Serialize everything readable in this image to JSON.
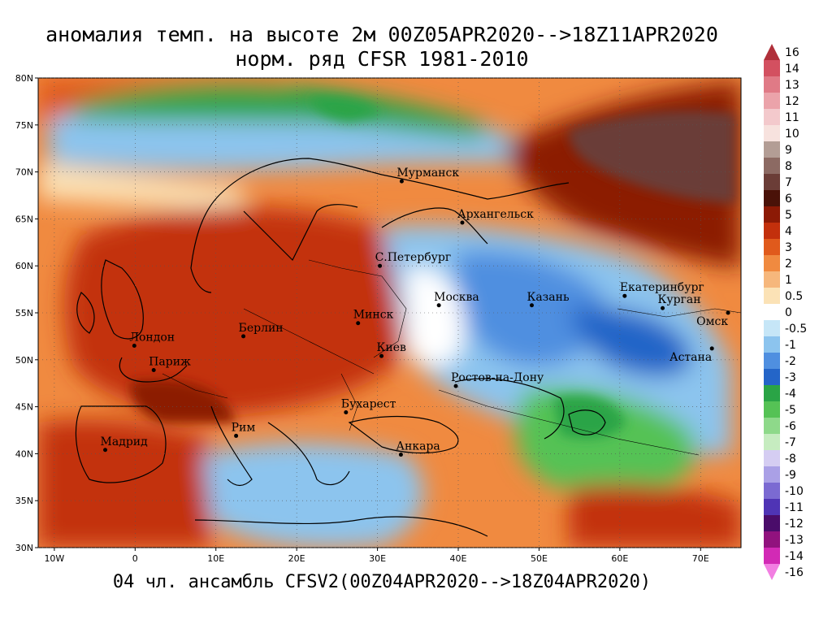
{
  "title_line1": "аномалия темп. на высоте 2м 00Z05APR2020-->18Z11APR2020",
  "title_line2": "норм. ряд CFSR 1981-2010",
  "footer": "04 чл. ансамбль CFSV2(00Z04APR2020-->18Z04APR2020)",
  "lat_ticks": [
    "80N",
    "75N",
    "70N",
    "65N",
    "60N",
    "55N",
    "50N",
    "45N",
    "40N",
    "35N",
    "30N"
  ],
  "lon_ticks": [
    "10W",
    "0",
    "10E",
    "20E",
    "30E",
    "40E",
    "50E",
    "60E",
    "70E"
  ],
  "lon_values": [
    -10,
    0,
    10,
    20,
    30,
    40,
    50,
    60,
    70
  ],
  "lat_values": [
    80,
    75,
    70,
    65,
    60,
    55,
    50,
    45,
    40,
    35,
    30
  ],
  "map_extent": {
    "lon": [
      -12,
      75
    ],
    "lat": [
      30,
      80
    ]
  },
  "cities": [
    {
      "name": "Мурманск",
      "lon": 33,
      "lat": 69
    },
    {
      "name": "Архангельск",
      "lon": 40.5,
      "lat": 64.6
    },
    {
      "name": "С.Петербург",
      "lon": 30.3,
      "lat": 60
    },
    {
      "name": "Москва",
      "lon": 37.6,
      "lat": 55.8
    },
    {
      "name": "Казань",
      "lon": 49.1,
      "lat": 55.8
    },
    {
      "name": "Екатеринбург",
      "lon": 60.6,
      "lat": 56.8
    },
    {
      "name": "Курган",
      "lon": 65.3,
      "lat": 55.5
    },
    {
      "name": "Омск",
      "lon": 73.4,
      "lat": 55
    },
    {
      "name": "Астана",
      "lon": 71.4,
      "lat": 51.2
    },
    {
      "name": "Минск",
      "lon": 27.6,
      "lat": 53.9
    },
    {
      "name": "Берлин",
      "lon": 13.4,
      "lat": 52.5
    },
    {
      "name": "Лондон",
      "lon": -0.1,
      "lat": 51.5
    },
    {
      "name": "Париж",
      "lon": 2.3,
      "lat": 48.9
    },
    {
      "name": "Киев",
      "lon": 30.5,
      "lat": 50.4
    },
    {
      "name": "Ростов-на-Дону",
      "lon": 39.7,
      "lat": 47.2
    },
    {
      "name": "Бухарест",
      "lon": 26.1,
      "lat": 44.4
    },
    {
      "name": "Рим",
      "lon": 12.5,
      "lat": 41.9
    },
    {
      "name": "Мадрид",
      "lon": -3.7,
      "lat": 40.4
    },
    {
      "name": "Анкара",
      "lon": 32.9,
      "lat": 39.9
    }
  ],
  "colorbar": {
    "labels": [
      "16",
      "14",
      "13",
      "12",
      "11",
      "10",
      "9",
      "8",
      "7",
      "6",
      "5",
      "4",
      "3",
      "2",
      "1",
      "0.5",
      "0",
      "-0.5",
      "-1",
      "-2",
      "-3",
      "-4",
      "-5",
      "-6",
      "-7",
      "-8",
      "-9",
      "-10",
      "-11",
      "-12",
      "-13",
      "-14",
      "-16"
    ],
    "colors": [
      "#b0303a",
      "#d35060",
      "#e07a86",
      "#eba3aa",
      "#f3c9cc",
      "#f7e2de",
      "#b39d95",
      "#8c6a63",
      "#6b3d37",
      "#4a1208",
      "#8c1a05",
      "#c3300c",
      "#e05a1c",
      "#f08a40",
      "#f6b77c",
      "#fbe2b6",
      "#ffffff",
      "#c6e6f7",
      "#8cc4ee",
      "#4f8fe0",
      "#2465c8",
      "#2aa446",
      "#55c255",
      "#8ed98a",
      "#c6ecc0",
      "#d5cdf2",
      "#aaa0e6",
      "#7b6ad2",
      "#4f34b5",
      "#4a0c6a",
      "#91127e",
      "#d22ab5",
      "#f27fe2"
    ]
  },
  "regions": [
    {
      "id": "arctic-warm",
      "color": "#c3300c"
    },
    {
      "id": "arctic-green",
      "color": "#2aa446"
    },
    {
      "id": "europe-warm",
      "color": "#e05a1c"
    },
    {
      "id": "russia-cold",
      "color": "#8cc4ee"
    },
    {
      "id": "central-asia-green",
      "color": "#55c255"
    },
    {
      "id": "siberia-hot",
      "color": "#6b3d37"
    }
  ]
}
